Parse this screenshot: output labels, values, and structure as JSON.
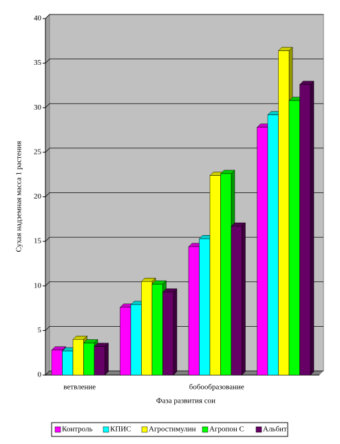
{
  "chart_data": {
    "type": "bar3d",
    "y_label": "Сухая надземная масса 1 растения",
    "x_label": "Фаза развития сои",
    "categories": [
      "ветвление",
      null,
      "бобообразование",
      null
    ],
    "series": [
      {
        "name": "Контроль",
        "color": "#ff00ff",
        "values": [
          2.8,
          7.6,
          14.4,
          27.8
        ]
      },
      {
        "name": "КПИС",
        "color": "#00ffff",
        "values": [
          2.7,
          7.9,
          15.3,
          29.2
        ]
      },
      {
        "name": "Агростимулин",
        "color": "#ffff00",
        "values": [
          4.0,
          10.5,
          22.4,
          36.4
        ]
      },
      {
        "name": "Агропон С",
        "color": "#00ff00",
        "values": [
          3.6,
          10.2,
          22.6,
          30.8
        ]
      },
      {
        "name": "Альбит",
        "color": "#660066",
        "values": [
          3.2,
          9.3,
          16.7,
          32.6
        ]
      }
    ],
    "ylim": [
      0,
      40
    ],
    "yticks": [
      0,
      5,
      10,
      15,
      20,
      25,
      30,
      35,
      40
    ],
    "grid": true,
    "legend": "bottom"
  }
}
